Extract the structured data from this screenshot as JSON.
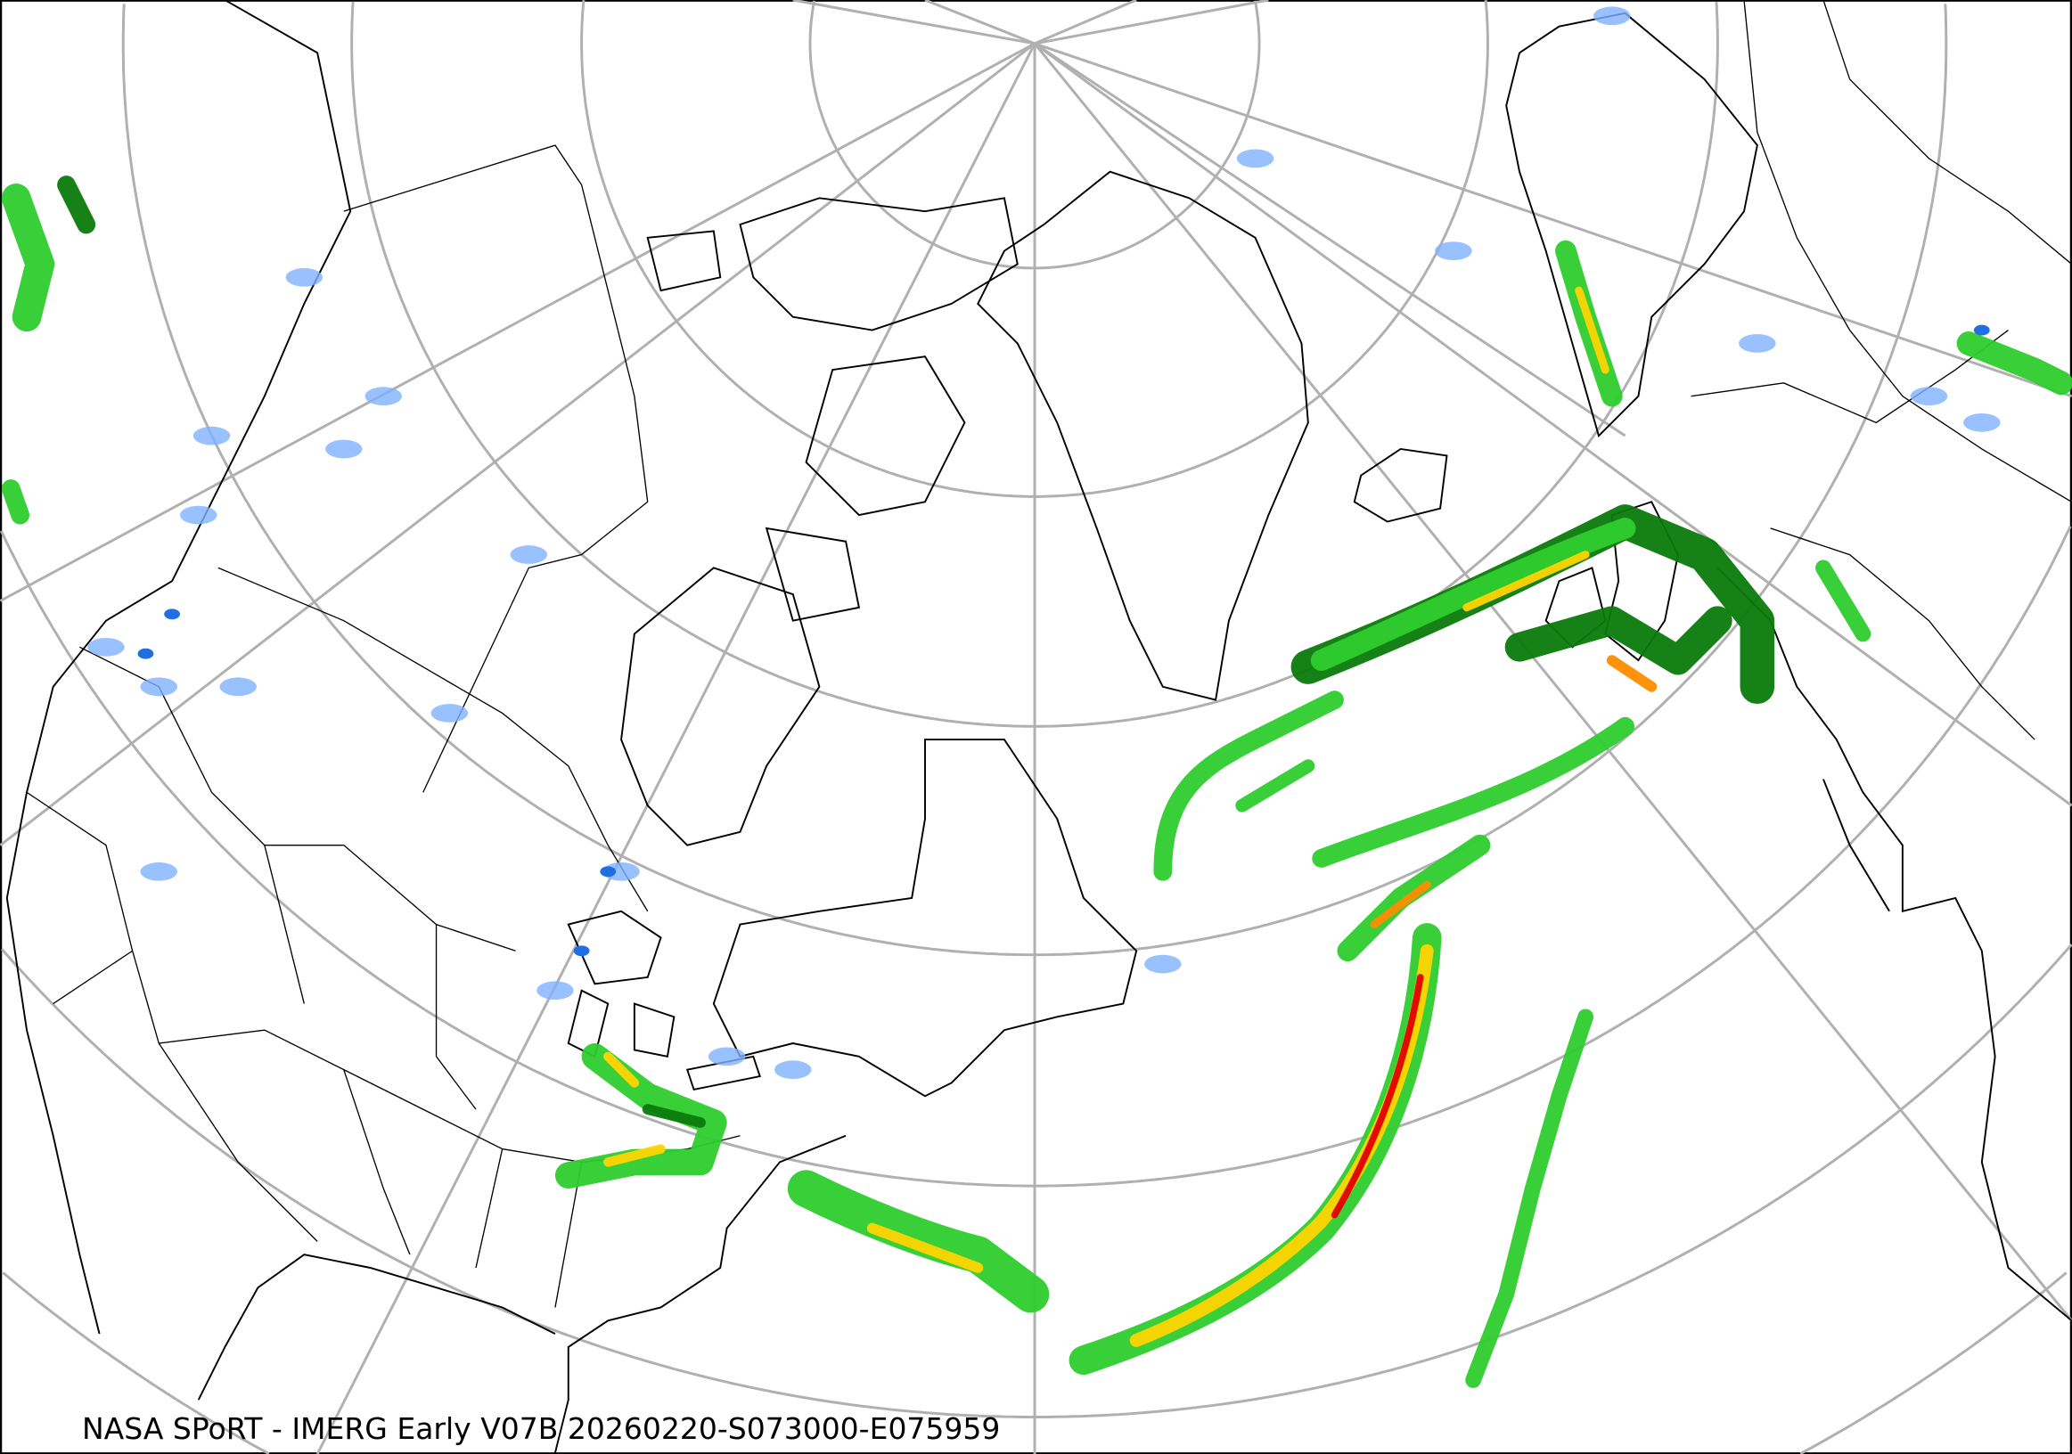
{
  "map": {
    "caption": "NASA SPoRT - IMERG Early V07B 20260220-S073000-E075959",
    "projection": "north-polar stereographic",
    "region": "North America, North Atlantic, Greenland, Europe",
    "colors": {
      "graticule": "#b0b0b0",
      "coastline": "#000000",
      "light_precip": "#7fb2ff",
      "light_precip_dark": "#1f6fe0",
      "moderate_precip": "#2ecc2e",
      "moderate_precip_dark": "#0a7a0a",
      "heavy_precip": "#ffd400",
      "heavier_precip": "#ff8c00",
      "extreme_precip": "#e00000"
    }
  }
}
